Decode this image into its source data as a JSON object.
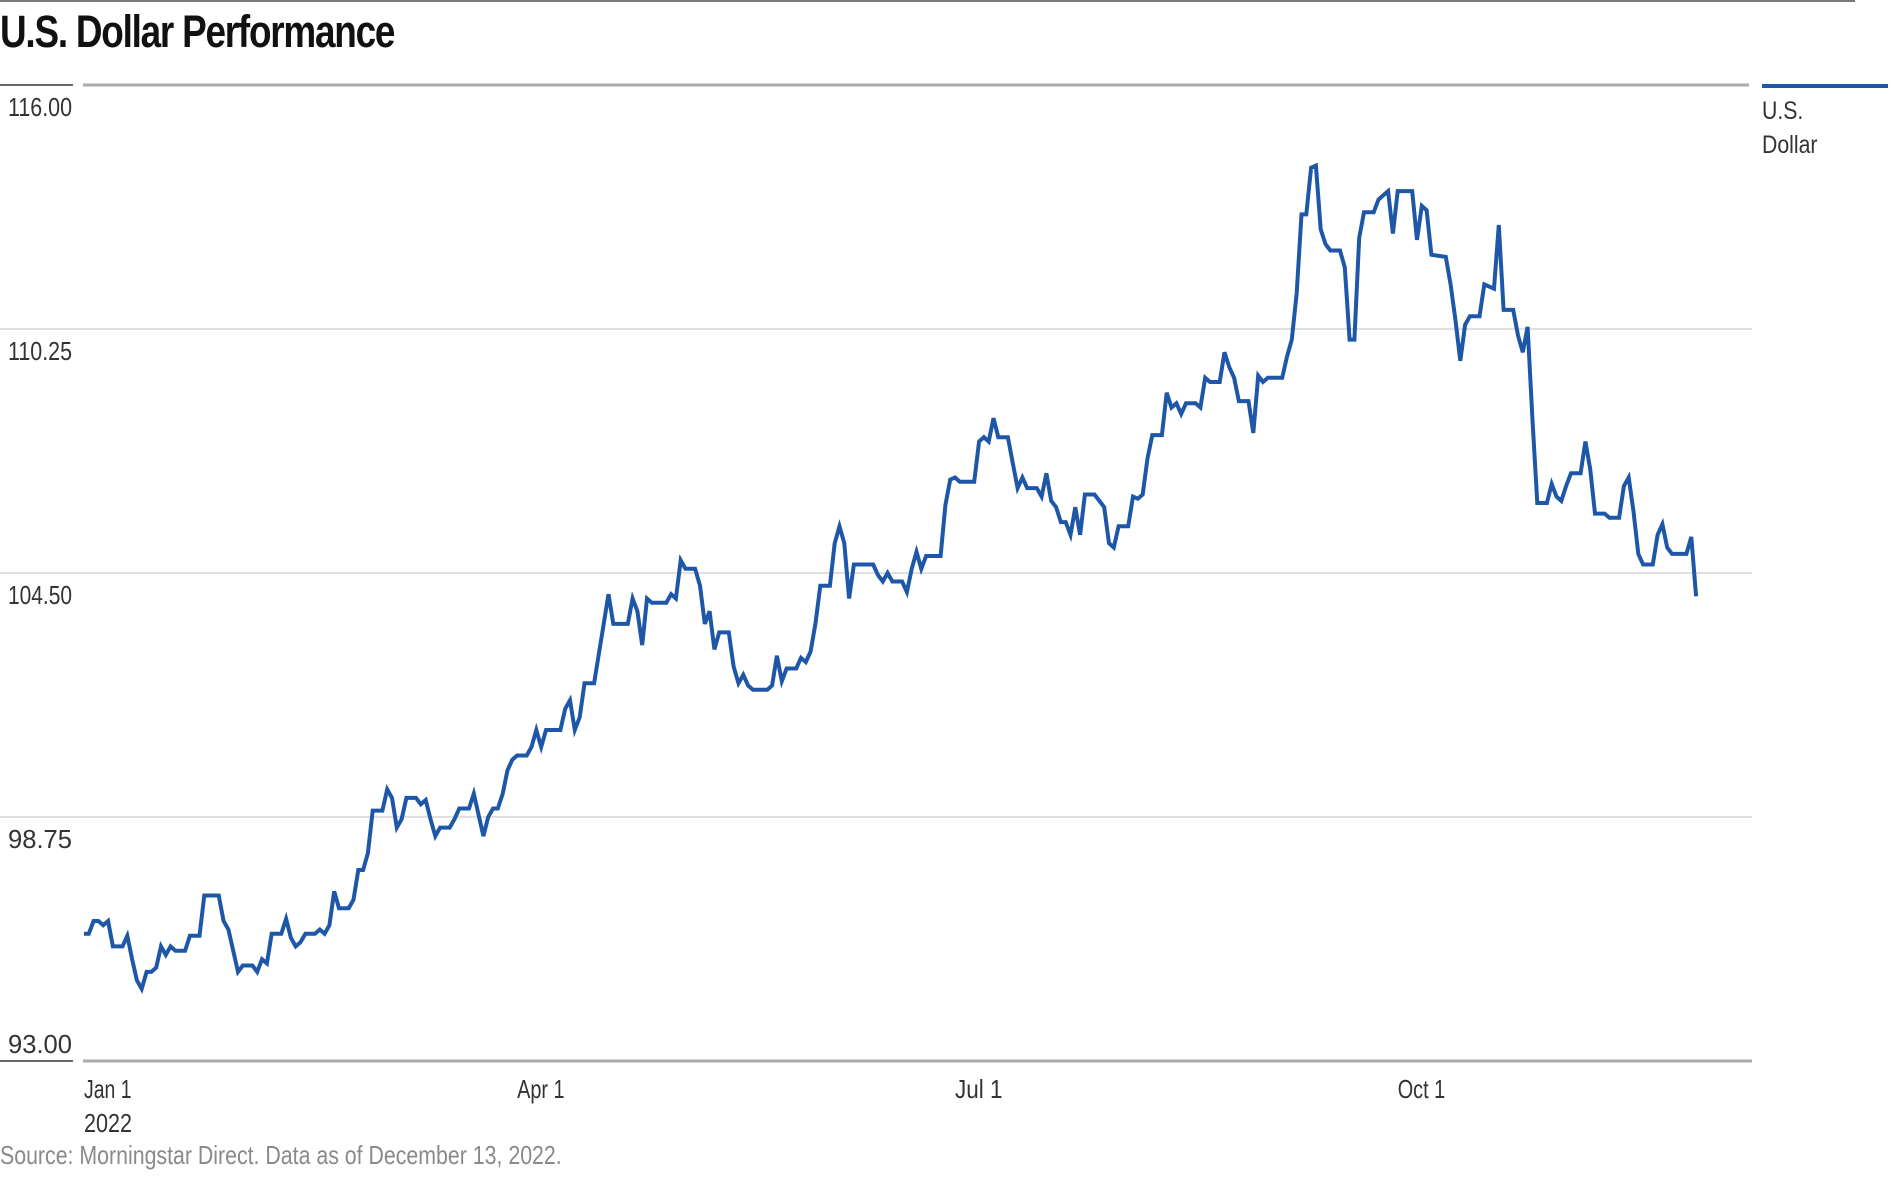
{
  "header": {
    "title": "U.S. Dollar Performance"
  },
  "legend": {
    "label_line1": "U.S.",
    "label_line2": "Dollar",
    "color": "#1f57a8"
  },
  "footer": {
    "source": "Source: Morningstar Direct. Data as of December 13, 2022."
  },
  "colors": {
    "line": "#1f57a8",
    "gridline": "#e0e0e0",
    "axis": "#aaaaaa",
    "text": "#333333",
    "footer_text": "#8a8a8a"
  },
  "chart_data": {
    "type": "line",
    "title": "U.S. Dollar Performance",
    "xlabel": "",
    "ylabel": "",
    "ylim": [
      93.0,
      116.0
    ],
    "yticks": [
      "116.00",
      "110.25",
      "104.50",
      "98.75",
      "93.00"
    ],
    "ytick_values": [
      116.0,
      110.25,
      104.5,
      98.75,
      93.0
    ],
    "xticks": [
      {
        "label": "Jan 1",
        "sublabel": "2022",
        "day": 0
      },
      {
        "label": "Apr 1",
        "sublabel": "",
        "day": 90
      },
      {
        "label": "Jul 1",
        "sublabel": "",
        "day": 181
      },
      {
        "label": "Oct 1",
        "sublabel": "",
        "day": 273
      }
    ],
    "x_range_days": [
      0,
      346
    ],
    "grid": true,
    "legend_position": "right-top",
    "series": [
      {
        "name": "U.S. Dollar",
        "color": "#1f57a8",
        "points": [
          [
            0,
            96.0
          ],
          [
            1,
            96.0
          ],
          [
            2,
            96.3
          ],
          [
            3,
            96.3
          ],
          [
            4,
            96.2
          ],
          [
            5,
            96.3
          ],
          [
            6,
            95.7
          ],
          [
            8,
            95.7
          ],
          [
            9,
            95.95
          ],
          [
            10,
            95.4
          ],
          [
            11,
            94.9
          ],
          [
            12,
            94.7
          ],
          [
            13,
            95.1
          ],
          [
            14,
            95.1
          ],
          [
            15,
            95.2
          ],
          [
            16,
            95.7
          ],
          [
            17,
            95.5
          ],
          [
            18,
            95.7
          ],
          [
            19,
            95.6
          ],
          [
            21,
            95.6
          ],
          [
            22,
            95.95
          ],
          [
            24,
            95.95
          ],
          [
            25,
            96.9
          ],
          [
            28,
            96.9
          ],
          [
            29,
            96.3
          ],
          [
            30,
            96.1
          ],
          [
            31,
            95.6
          ],
          [
            32,
            95.1
          ],
          [
            33,
            95.25
          ],
          [
            35,
            95.25
          ],
          [
            36,
            95.1
          ],
          [
            37,
            95.4
          ],
          [
            38,
            95.3
          ],
          [
            39,
            96.0
          ],
          [
            41,
            96.0
          ],
          [
            42,
            96.35
          ],
          [
            43,
            95.9
          ],
          [
            44,
            95.7
          ],
          [
            45,
            95.8
          ],
          [
            46,
            96.0
          ],
          [
            48,
            96.0
          ],
          [
            49,
            96.1
          ],
          [
            50,
            96.0
          ],
          [
            51,
            96.2
          ],
          [
            52,
            97.0
          ],
          [
            53,
            96.6
          ],
          [
            55,
            96.6
          ],
          [
            56,
            96.8
          ],
          [
            57,
            97.5
          ],
          [
            58,
            97.5
          ],
          [
            59,
            97.9
          ],
          [
            60,
            98.9
          ],
          [
            62,
            98.9
          ],
          [
            63,
            99.4
          ],
          [
            64,
            99.2
          ],
          [
            65,
            98.5
          ],
          [
            66,
            98.7
          ],
          [
            67,
            99.2
          ],
          [
            69,
            99.2
          ],
          [
            70,
            99.05
          ],
          [
            71,
            99.15
          ],
          [
            72,
            98.7
          ],
          [
            73,
            98.3
          ],
          [
            74,
            98.5
          ],
          [
            76,
            98.5
          ],
          [
            77,
            98.7
          ],
          [
            78,
            98.95
          ],
          [
            80,
            98.95
          ],
          [
            81,
            99.3
          ],
          [
            82,
            98.8
          ],
          [
            83,
            98.3
          ],
          [
            84,
            98.75
          ],
          [
            85,
            98.95
          ],
          [
            86,
            98.95
          ],
          [
            87,
            99.3
          ],
          [
            88,
            99.85
          ],
          [
            89,
            100.1
          ],
          [
            90,
            100.2
          ],
          [
            92,
            100.2
          ],
          [
            93,
            100.4
          ],
          [
            94,
            100.8
          ],
          [
            95,
            100.4
          ],
          [
            96,
            100.8
          ],
          [
            99,
            100.8
          ],
          [
            100,
            101.3
          ],
          [
            101,
            101.5
          ],
          [
            102,
            100.8
          ],
          [
            103,
            101.1
          ],
          [
            104,
            101.9
          ],
          [
            106,
            101.9
          ],
          [
            107,
            102.6
          ],
          [
            108,
            103.3
          ],
          [
            109,
            104.0
          ],
          [
            110,
            103.3
          ],
          [
            113,
            103.3
          ],
          [
            114,
            103.9
          ],
          [
            115,
            103.6
          ],
          [
            116,
            102.8
          ],
          [
            117,
            103.9
          ],
          [
            118,
            103.8
          ],
          [
            121,
            103.8
          ],
          [
            122,
            104.0
          ],
          [
            123,
            103.9
          ],
          [
            124,
            104.8
          ],
          [
            125,
            104.6
          ],
          [
            127,
            104.6
          ],
          [
            128,
            104.2
          ],
          [
            129,
            103.3
          ],
          [
            130,
            103.6
          ],
          [
            131,
            102.7
          ],
          [
            132,
            103.1
          ],
          [
            134,
            103.1
          ],
          [
            135,
            102.3
          ],
          [
            136,
            101.9
          ],
          [
            137,
            102.1
          ],
          [
            138,
            101.85
          ],
          [
            139,
            101.75
          ],
          [
            142,
            101.75
          ],
          [
            143,
            101.85
          ],
          [
            144,
            102.55
          ],
          [
            145,
            101.95
          ],
          [
            146,
            102.25
          ],
          [
            148,
            102.25
          ],
          [
            149,
            102.5
          ],
          [
            150,
            102.4
          ],
          [
            151,
            102.65
          ],
          [
            152,
            103.3
          ],
          [
            153,
            104.2
          ],
          [
            155,
            104.2
          ],
          [
            156,
            105.2
          ],
          [
            157,
            105.6
          ],
          [
            158,
            105.2
          ],
          [
            159,
            103.9
          ],
          [
            160,
            104.7
          ],
          [
            164,
            104.7
          ],
          [
            165,
            104.45
          ],
          [
            166,
            104.3
          ],
          [
            167,
            104.5
          ],
          [
            168,
            104.3
          ],
          [
            170,
            104.3
          ],
          [
            171,
            104.05
          ],
          [
            172,
            104.6
          ],
          [
            173,
            105.0
          ],
          [
            174,
            104.6
          ],
          [
            175,
            104.9
          ],
          [
            178,
            104.9
          ],
          [
            179,
            106.1
          ],
          [
            180,
            106.7
          ],
          [
            181,
            106.75
          ],
          [
            182,
            106.65
          ],
          [
            185,
            106.65
          ],
          [
            186,
            107.6
          ],
          [
            187,
            107.7
          ],
          [
            188,
            107.6
          ],
          [
            189,
            108.15
          ],
          [
            190,
            107.7
          ],
          [
            192,
            107.7
          ],
          [
            193,
            107.1
          ],
          [
            194,
            106.5
          ],
          [
            195,
            106.75
          ],
          [
            196,
            106.5
          ],
          [
            198,
            106.5
          ],
          [
            199,
            106.3
          ],
          [
            200,
            106.85
          ],
          [
            201,
            106.2
          ],
          [
            202,
            106.05
          ],
          [
            203,
            105.7
          ],
          [
            204,
            105.7
          ],
          [
            205,
            105.4
          ],
          [
            206,
            106.05
          ],
          [
            207,
            105.4
          ],
          [
            208,
            106.35
          ],
          [
            210,
            106.35
          ],
          [
            211,
            106.2
          ],
          [
            212,
            106.05
          ],
          [
            213,
            105.2
          ],
          [
            214,
            105.1
          ],
          [
            215,
            105.6
          ],
          [
            217,
            105.6
          ],
          [
            218,
            106.3
          ],
          [
            219,
            106.25
          ],
          [
            220,
            106.35
          ],
          [
            221,
            107.2
          ],
          [
            222,
            107.75
          ],
          [
            224,
            107.75
          ],
          [
            225,
            108.75
          ],
          [
            226,
            108.4
          ],
          [
            227,
            108.5
          ],
          [
            228,
            108.25
          ],
          [
            229,
            108.5
          ],
          [
            231,
            108.5
          ],
          [
            232,
            108.4
          ],
          [
            233,
            109.1
          ],
          [
            234,
            109.0
          ],
          [
            236,
            109.0
          ],
          [
            237,
            109.7
          ],
          [
            238,
            109.35
          ],
          [
            239,
            109.1
          ],
          [
            240,
            108.55
          ],
          [
            242,
            108.55
          ],
          [
            243,
            107.8
          ],
          [
            244,
            109.15
          ],
          [
            245,
            109.0
          ],
          [
            246,
            109.1
          ],
          [
            249,
            109.1
          ],
          [
            250,
            109.6
          ],
          [
            251,
            110.0
          ],
          [
            252,
            111.1
          ],
          [
            253,
            112.95
          ],
          [
            254,
            112.95
          ],
          [
            255,
            114.05
          ],
          [
            256,
            114.1
          ],
          [
            257,
            112.6
          ],
          [
            258,
            112.25
          ],
          [
            259,
            112.1
          ],
          [
            261,
            112.1
          ],
          [
            262,
            111.7
          ],
          [
            263,
            110.0
          ],
          [
            264,
            110.0
          ],
          [
            265,
            112.4
          ],
          [
            266,
            113.0
          ],
          [
            268,
            113.0
          ],
          [
            269,
            113.3
          ],
          [
            270,
            113.4
          ],
          [
            271,
            113.5
          ],
          [
            272,
            112.5
          ],
          [
            273,
            113.5
          ],
          [
            276,
            113.5
          ],
          [
            277,
            112.35
          ],
          [
            278,
            113.15
          ],
          [
            279,
            113.05
          ],
          [
            280,
            112.0
          ],
          [
            283,
            111.95
          ],
          [
            284,
            111.3
          ],
          [
            285,
            110.45
          ],
          [
            286,
            109.5
          ],
          [
            287,
            110.35
          ],
          [
            288,
            110.55
          ],
          [
            290,
            110.55
          ],
          [
            291,
            111.3
          ],
          [
            293,
            111.2
          ],
          [
            294,
            112.7
          ],
          [
            295,
            110.7
          ],
          [
            297,
            110.7
          ],
          [
            298,
            110.1
          ],
          [
            299,
            109.7
          ],
          [
            300,
            110.3
          ],
          [
            301,
            108.1
          ],
          [
            302,
            106.15
          ],
          [
            304,
            106.15
          ],
          [
            305,
            106.6
          ],
          [
            306,
            106.3
          ],
          [
            307,
            106.2
          ],
          [
            308,
            106.55
          ],
          [
            309,
            106.85
          ],
          [
            311,
            106.85
          ],
          [
            312,
            107.6
          ],
          [
            313,
            106.95
          ],
          [
            314,
            105.9
          ],
          [
            316,
            105.9
          ],
          [
            317,
            105.8
          ],
          [
            319,
            105.8
          ],
          [
            320,
            106.55
          ],
          [
            321,
            106.75
          ],
          [
            322,
            105.95
          ],
          [
            323,
            104.95
          ],
          [
            324,
            104.7
          ],
          [
            326,
            104.7
          ],
          [
            327,
            105.4
          ],
          [
            328,
            105.65
          ],
          [
            329,
            105.1
          ],
          [
            330,
            104.95
          ],
          [
            332,
            104.95
          ],
          [
            333,
            104.95
          ],
          [
            334,
            105.35
          ],
          [
            335,
            103.95
          ]
        ]
      }
    ]
  }
}
